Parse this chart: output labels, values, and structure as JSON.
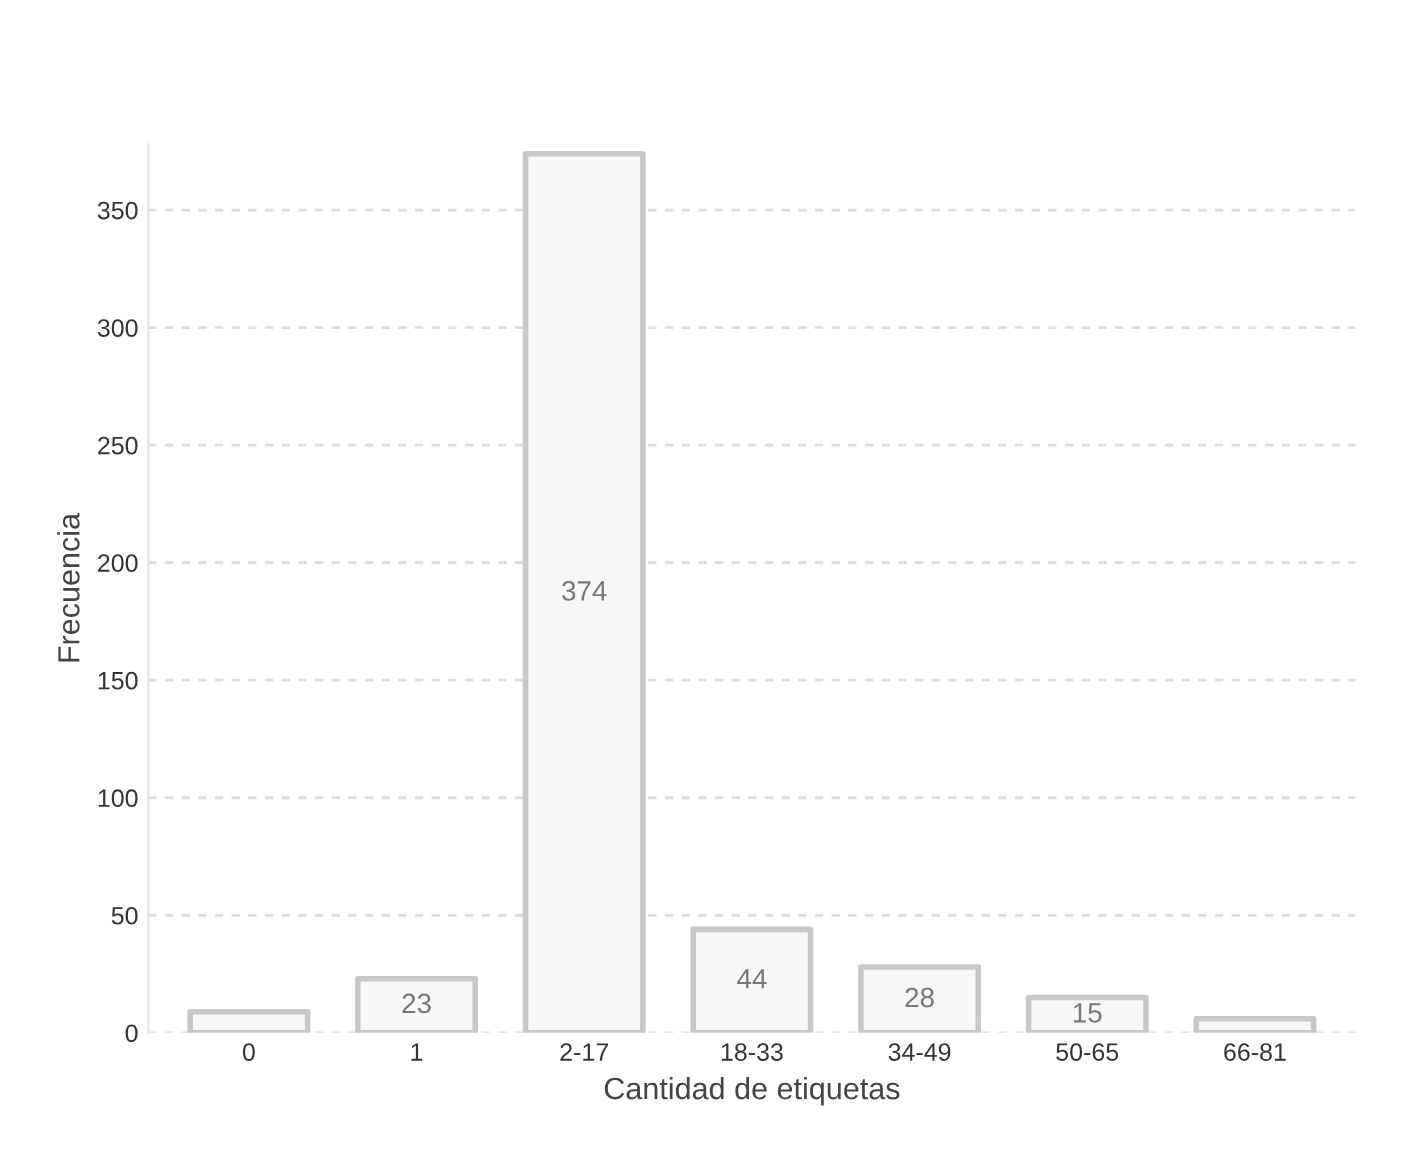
{
  "chart_data": {
    "type": "bar",
    "xlabel": "Cantidad de etiquetas",
    "ylabel": "Frecuencia",
    "categories": [
      "0",
      "1",
      "2-17",
      "18-33",
      "34-49",
      "50-65",
      "66-81"
    ],
    "values": [
      9,
      23,
      374,
      44,
      28,
      15,
      6
    ],
    "value_labels": [
      null,
      "23",
      "374",
      "44",
      "28",
      "15",
      null
    ],
    "color": "#f6f7f8",
    "ylim": [
      0,
      378
    ],
    "yticks": [
      0,
      50,
      100,
      150,
      200,
      250,
      300,
      350
    ],
    "grid": "y",
    "legend": false
  }
}
